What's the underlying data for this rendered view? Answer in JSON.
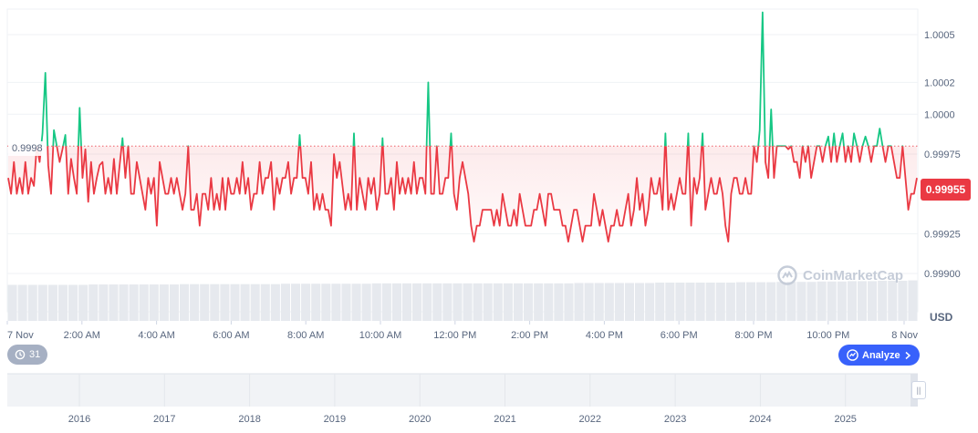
{
  "chart_data": {
    "type": "line",
    "title": "",
    "currency_label": "USD",
    "y_ticks": [
      "1.0005",
      "1.0002",
      "1.0000",
      "0.99975",
      "0.99925",
      "0.99900"
    ],
    "y_tick_values": [
      1.0005,
      1.0002,
      1.0,
      0.99975,
      0.99925,
      0.999
    ],
    "ylim": [
      0.999,
      1.00066
    ],
    "x_ticks": [
      "7 Nov",
      "2:00 AM",
      "4:00 AM",
      "6:00 AM",
      "8:00 AM",
      "10:00 AM",
      "12:00 PM",
      "2:00 PM",
      "4:00 PM",
      "6:00 PM",
      "8:00 PM",
      "10:00 PM",
      "8 Nov"
    ],
    "reference_line": {
      "value": 0.9998,
      "label": "0.9998"
    },
    "current_price": {
      "value": 0.99955,
      "label": "0.99955"
    },
    "colors": {
      "above": "#16c784",
      "below": "#ea3943",
      "grid": "#eff2f5",
      "volume": "#e6e9ee"
    },
    "series_values": [
      0.9996,
      0.9995,
      0.9997,
      0.9995,
      0.9996,
      0.9995,
      0.9997,
      0.9995,
      0.9996,
      0.99955,
      0.9998,
      0.9997,
      0.99988,
      1.00026,
      0.99968,
      0.9995,
      0.9999,
      0.9998,
      0.9997,
      0.99978,
      0.99987,
      0.9995,
      0.99972,
      0.9996,
      0.9995,
      1.00004,
      0.9996,
      0.99978,
      0.99945,
      0.9997,
      0.9995,
      0.9996,
      0.99968,
      0.9997,
      0.9995,
      0.9996,
      0.9995,
      0.99972,
      0.9995,
      0.99968,
      0.99985,
      0.9996,
      0.9998,
      0.9995,
      0.9995,
      0.9997,
      0.9996,
      0.9995,
      0.9994,
      0.9996,
      0.9995,
      0.9996,
      0.9993,
      0.9997,
      0.9996,
      0.9995,
      0.9995,
      0.9996,
      0.9995,
      0.9996,
      0.9995,
      0.9994,
      0.9995,
      0.9998,
      0.9994,
      0.9994,
      0.9995,
      0.9993,
      0.9995,
      0.9995,
      0.9994,
      0.9996,
      0.9994,
      0.9995,
      0.9994,
      0.9996,
      0.9994,
      0.9996,
      0.9995,
      0.9995,
      0.9996,
      0.9995,
      0.9997,
      0.9995,
      0.9996,
      0.9994,
      0.9995,
      0.9995,
      0.9997,
      0.9995,
      0.9996,
      0.9996,
      0.9997,
      0.9994,
      0.9996,
      0.9995,
      0.9996,
      0.9996,
      0.9997,
      0.9995,
      0.9996,
      0.9996,
      0.99987,
      0.9996,
      0.9996,
      0.9995,
      0.9997,
      0.9994,
      0.9995,
      0.9994,
      0.9995,
      0.9994,
      0.9994,
      0.9993,
      0.99975,
      0.9996,
      0.9997,
      0.99955,
      0.9994,
      0.9995,
      0.9994,
      0.99988,
      0.9994,
      0.9996,
      0.9995,
      0.9994,
      0.9996,
      0.9995,
      0.9996,
      0.9994,
      0.9995,
      0.99985,
      0.9995,
      0.9995,
      0.9996,
      0.9994,
      0.9997,
      0.9995,
      0.9996,
      0.9995,
      0.9996,
      0.9995,
      0.9997,
      0.9995,
      0.9996,
      0.9996,
      0.9995,
      1.0002,
      0.9995,
      0.9995,
      0.9998,
      0.9995,
      0.9995,
      0.9996,
      0.9996,
      0.99988,
      0.9995,
      0.9994,
      0.9996,
      0.9997,
      0.9996,
      0.9995,
      0.9993,
      0.9992,
      0.9993,
      0.9993,
      0.9994,
      0.9994,
      0.9994,
      0.9994,
      0.9993,
      0.9994,
      0.9993,
      0.9995,
      0.9994,
      0.9993,
      0.9993,
      0.9994,
      0.9993,
      0.9995,
      0.9994,
      0.9993,
      0.9993,
      0.9993,
      0.9994,
      0.9994,
      0.9995,
      0.9994,
      0.9993,
      0.9995,
      0.9995,
      0.9994,
      0.9994,
      0.9994,
      0.9993,
      0.9993,
      0.9992,
      0.9993,
      0.9994,
      0.9994,
      0.9993,
      0.9992,
      0.9993,
      0.9993,
      0.9993,
      0.9995,
      0.9994,
      0.9993,
      0.9994,
      0.9993,
      0.9992,
      0.9993,
      0.9993,
      0.9994,
      0.9993,
      0.9993,
      0.9994,
      0.9995,
      0.9993,
      0.9994,
      0.9996,
      0.9994,
      0.9995,
      0.9993,
      0.9994,
      0.9996,
      0.9995,
      0.9995,
      0.9996,
      0.9994,
      0.99988,
      0.9994,
      0.9995,
      0.9994,
      0.9995,
      0.9996,
      0.9995,
      0.9995,
      0.99988,
      0.9993,
      0.9996,
      0.9995,
      0.9996,
      0.99988,
      0.9994,
      0.9995,
      0.9996,
      0.9995,
      0.9995,
      0.9996,
      0.9995,
      0.9993,
      0.9992,
      0.9995,
      0.9996,
      0.9996,
      0.9995,
      0.9995,
      0.9996,
      0.9995,
      0.9995,
      0.9998,
      0.9997,
      0.9999,
      1.00064,
      0.9997,
      0.9996,
      1.00003,
      0.9996,
      0.9998,
      0.9998,
      0.9998,
      0.9998,
      0.99978,
      0.9998,
      0.9997,
      0.9997,
      0.9996,
      0.9998,
      0.9997,
      0.9998,
      0.9996,
      0.9997,
      0.9998,
      0.9998,
      0.9997,
      0.9998,
      0.99986,
      0.9997,
      0.99988,
      0.9997,
      0.9998,
      0.99988,
      0.9997,
      0.9998,
      0.9997,
      0.99988,
      0.9998,
      0.9997,
      0.9998,
      0.99986,
      0.9998,
      0.9997,
      0.9998,
      0.9998,
      0.99991,
      0.9998,
      0.9997,
      0.9998,
      0.9998,
      0.9997,
      0.9996,
      0.9996,
      0.9998,
      0.9996,
      0.9994,
      0.9995,
      0.9995,
      0.9996
    ],
    "volume_values": [
      0.96,
      0.96,
      0.96,
      0.96,
      0.96,
      0.96,
      0.96,
      0.96,
      0.97,
      0.97,
      0.97,
      0.97,
      0.97,
      0.97,
      0.97,
      0.97,
      0.97,
      0.98,
      0.98,
      0.98,
      0.98,
      0.98,
      0.98,
      0.98,
      0.98,
      0.98,
      0.98,
      0.99,
      0.99,
      0.99,
      0.99,
      0.99,
      0.99,
      0.99,
      0.99,
      0.99,
      1.0,
      1.0,
      1.0,
      1.0,
      1.0,
      1.0,
      1.0,
      1.0,
      1.0,
      1.0,
      1.0,
      1.0,
      1.0,
      1.0,
      1.0,
      1.0,
      1.0,
      1.0,
      1.0,
      1.0,
      1.01,
      1.01,
      1.01,
      1.01,
      1.01,
      1.01,
      1.01,
      1.01,
      1.02,
      1.02,
      1.02,
      1.02,
      1.02,
      1.02,
      1.02,
      1.02,
      1.03,
      1.03,
      1.03,
      1.03,
      1.04,
      1.04,
      1.04,
      1.04,
      1.05,
      1.05,
      1.05,
      1.06,
      1.06,
      1.06,
      1.07,
      1.07,
      1.07,
      1.08
    ],
    "navigator": {
      "years": [
        "2016",
        "2017",
        "2018",
        "2019",
        "2020",
        "2021",
        "2022",
        "2023",
        "2024",
        "2025"
      ]
    }
  },
  "ui": {
    "history_button": {
      "icon": "history-icon",
      "label": "31"
    },
    "analyze_button": {
      "icon": "analyze-icon",
      "label": "Analyze",
      "chevron": "chevron-right-icon"
    },
    "watermark": {
      "icon": "coinmarketcap-logo-icon",
      "text": "CoinMarketCap"
    },
    "navigator_handle": {
      "icon": "grip-icon",
      "label": "||"
    }
  }
}
